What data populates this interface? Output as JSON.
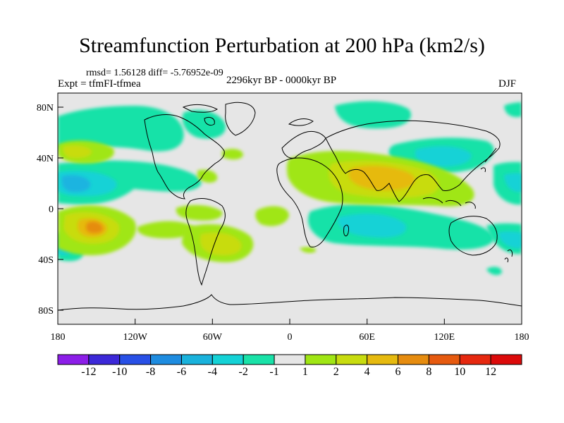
{
  "title": "Streamfunction Perturbation at 200 hPa (km2/s)",
  "stats": "rmsd= 1.56128 diff= -5.76952e-09",
  "experiment": "Expt = tfmFI-tfmea",
  "period": "2296kyr BP - 0000kyr BP",
  "season": "DJF",
  "lat_labels": [
    "80N",
    "40N",
    "0",
    "40S",
    "80S"
  ],
  "lon_labels": [
    "180",
    "120W",
    "60W",
    "0",
    "60E",
    "120E",
    "180"
  ],
  "colorbar": {
    "labels": [
      "-12",
      "-10",
      "-8",
      "-6",
      "-4",
      "-2",
      "-1",
      "1",
      "2",
      "4",
      "6",
      "8",
      "10",
      "12"
    ],
    "colors": [
      "#8c1ee8",
      "#3c28d8",
      "#2850e6",
      "#1e8ce0",
      "#19b2dc",
      "#14d2d6",
      "#19e2a8",
      "#e6e6e6",
      "#a0e614",
      "#c8dc0f",
      "#e6ba0f",
      "#e68c0f",
      "#e65a0f",
      "#e6280f",
      "#dc0a0a"
    ]
  },
  "field_colors": {
    "background": "#e6e6e6",
    "neg1": "#19e2a8",
    "neg2": "#14d2d6",
    "neg3": "#1eb4e0",
    "pos1": "#a0e614",
    "pos2": "#c8dc0f",
    "pos3": "#e6ba0f",
    "pos4": "#e68c0f"
  }
}
